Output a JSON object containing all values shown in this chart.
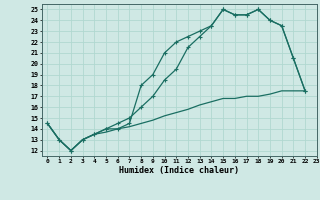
{
  "xlabel": "Humidex (Indice chaleur)",
  "bg_color": "#cfe8e4",
  "grid_color": "#b0d8d0",
  "line_color": "#1a6e62",
  "xlim": [
    -0.5,
    23
  ],
  "ylim": [
    11.5,
    25.5
  ],
  "xticks": [
    0,
    1,
    2,
    3,
    4,
    5,
    6,
    7,
    8,
    9,
    10,
    11,
    12,
    13,
    14,
    15,
    16,
    17,
    18,
    19,
    20,
    21,
    22,
    23
  ],
  "yticks": [
    12,
    13,
    14,
    15,
    16,
    17,
    18,
    19,
    20,
    21,
    22,
    23,
    24,
    25
  ],
  "line1_x": [
    0,
    1,
    2,
    3,
    4,
    5,
    6,
    7,
    8,
    9,
    10,
    11,
    12,
    13,
    14,
    15,
    16,
    17,
    18,
    19,
    20,
    21,
    22
  ],
  "line1_y": [
    14.5,
    13,
    12,
    13,
    13.5,
    14,
    14,
    14.5,
    18,
    19,
    21,
    22,
    22.5,
    23,
    23.5,
    25,
    24.5,
    24.5,
    25,
    24,
    23.5,
    20.5,
    17.5
  ],
  "line2_x": [
    0,
    1,
    2,
    3,
    4,
    5,
    6,
    7,
    8,
    9,
    10,
    11,
    12,
    13,
    14,
    15,
    16,
    17,
    18,
    19,
    20,
    21,
    22
  ],
  "line2_y": [
    14.5,
    13,
    12,
    13,
    13.5,
    14,
    14.5,
    15,
    16,
    17,
    18.5,
    19.5,
    21.5,
    22.5,
    23.5,
    25,
    24.5,
    24.5,
    25,
    24,
    23.5,
    20.5,
    17.5
  ],
  "line3_x": [
    0,
    1,
    2,
    3,
    4,
    5,
    6,
    7,
    8,
    9,
    10,
    11,
    12,
    13,
    14,
    15,
    16,
    17,
    18,
    19,
    20,
    21,
    22
  ],
  "line3_y": [
    14.5,
    13,
    12,
    13,
    13.5,
    13.7,
    14.0,
    14.2,
    14.5,
    14.8,
    15.2,
    15.5,
    15.8,
    16.2,
    16.5,
    16.8,
    16.8,
    17.0,
    17.0,
    17.2,
    17.5,
    17.5,
    17.5
  ]
}
